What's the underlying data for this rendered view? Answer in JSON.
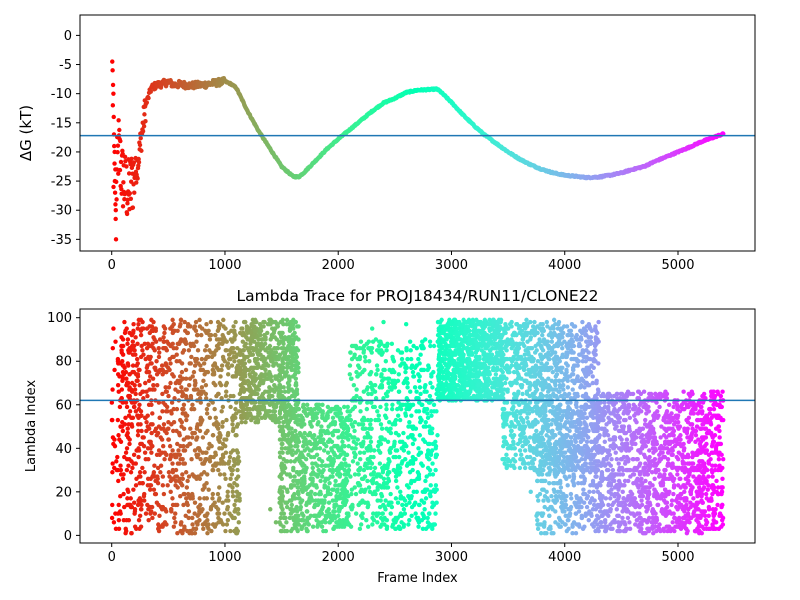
{
  "chart_data": [
    {
      "type": "scatter",
      "title": "",
      "xlabel": "",
      "ylabel": "ΔG (kT)",
      "xlim": [
        -280,
        5680
      ],
      "ylim": [
        -37,
        3.5
      ],
      "xticks": [
        0,
        1000,
        2000,
        3000,
        4000,
        5000
      ],
      "yticks": [
        0,
        -5,
        -10,
        -15,
        -20,
        -25,
        -30,
        -35
      ],
      "hline": {
        "y": -17.2,
        "color": "#1f77b4"
      },
      "colormap": "rainbow",
      "x_max": 5400,
      "series": [
        {
          "values_x": [
            0,
            10,
            20,
            30,
            60,
            90,
            120,
            150,
            180,
            200,
            230,
            250,
            280,
            300,
            350,
            400,
            450,
            500,
            550,
            600,
            700,
            800,
            900,
            1000,
            1050,
            1100,
            1150,
            1200,
            1300,
            1400,
            1500,
            1600,
            1650,
            1700,
            1800,
            1900,
            2000,
            2100,
            2200,
            2300,
            2400,
            2500,
            2600,
            2700,
            2800,
            2870,
            2900,
            3000,
            3100,
            3200,
            3300,
            3400,
            3500,
            3600,
            3700,
            3800,
            3900,
            4000,
            4100,
            4200,
            4300,
            4400,
            4500,
            4600,
            4700,
            4800,
            4900,
            5000,
            5100,
            5200,
            5300,
            5400
          ],
          "values_y": [
            -6,
            -14,
            -22,
            -31,
            -19,
            -24,
            -26,
            -27,
            -25,
            -24,
            -22,
            -19,
            -15,
            -12,
            -9,
            -8.5,
            -8.3,
            -8,
            -8.5,
            -8.4,
            -8.6,
            -8.5,
            -8.2,
            -7.9,
            -8.3,
            -9,
            -11,
            -13,
            -16.5,
            -19.5,
            -22.5,
            -24.2,
            -24.3,
            -23.5,
            -21.5,
            -19.5,
            -17.8,
            -16.2,
            -14.6,
            -13,
            -11.6,
            -10.8,
            -9.8,
            -9.4,
            -9.3,
            -9.2,
            -9.6,
            -11.5,
            -13.6,
            -15.5,
            -17.2,
            -18.6,
            -20,
            -21.2,
            -22.2,
            -23,
            -23.6,
            -24,
            -24.2,
            -24.4,
            -24.3,
            -24,
            -23.6,
            -23,
            -22.5,
            -21.6,
            -20.8,
            -20,
            -19.2,
            -18.3,
            -17.6,
            -16.9
          ]
        }
      ]
    },
    {
      "type": "scatter",
      "title": "Lambda Trace for PROJ18434/RUN11/CLONE22",
      "xlabel": "Frame Index",
      "ylabel": "Lambda Index",
      "xlim": [
        -280,
        5680
      ],
      "ylim": [
        -3.5,
        104
      ],
      "xticks": [
        0,
        1000,
        2000,
        3000,
        4000,
        5000
      ],
      "yticks": [
        0,
        20,
        40,
        60,
        80,
        100
      ],
      "hline": {
        "y": 62,
        "color": "#1f77b4"
      },
      "colormap": "rainbow",
      "x_max": 5400,
      "series": [
        {
          "description": "dense scatter of lambda index (1–99) per frame, grouped into bands",
          "bands": [
            {
              "x_start": 0,
              "x_end": 60,
              "y_min": 2,
              "y_max": 99
            },
            {
              "x_start": 60,
              "x_end": 1130,
              "y_min": 1,
              "y_max": 99
            },
            {
              "x_start": 1130,
              "x_end": 1650,
              "y_min": 52,
              "y_max": 99
            },
            {
              "x_start": 1480,
              "x_end": 2100,
              "y_min": 2,
              "y_max": 60
            },
            {
              "x_start": 2100,
              "x_end": 2880,
              "y_min": 2,
              "y_max": 90
            },
            {
              "x_start": 2880,
              "x_end": 3450,
              "y_min": 62,
              "y_max": 99
            },
            {
              "x_start": 3450,
              "x_end": 4300,
              "y_min": 30,
              "y_max": 99
            },
            {
              "x_start": 3750,
              "x_end": 4300,
              "y_min": 1,
              "y_max": 60
            },
            {
              "x_start": 4300,
              "x_end": 5400,
              "y_min": 1,
              "y_max": 66
            }
          ]
        }
      ]
    }
  ]
}
